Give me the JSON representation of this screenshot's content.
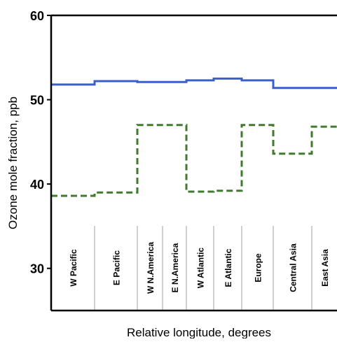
{
  "chart_data": {
    "type": "line",
    "title": "",
    "xlabel": "Relative longitude, degrees",
    "ylabel": "Ozone mole fraction, ppb",
    "ylim": [
      25,
      60
    ],
    "yticks": [
      30,
      40,
      50,
      60
    ],
    "grid": false,
    "step": true,
    "regions": [
      "W Pacific",
      "E Pacific",
      "W N.America",
      "E N.America",
      "W Atlantic",
      "E Atlantic",
      "Europe",
      "Central Asia",
      "East Asia"
    ],
    "series": [
      {
        "color": "#3a5fcd",
        "style": "solid",
        "values": [
          51.8,
          52.2,
          52.1,
          52.1,
          52.3,
          52.5,
          52.3,
          51.4,
          51.4
        ]
      },
      {
        "color": "#3f7a2e",
        "style": "dashed",
        "values": [
          38.6,
          39.0,
          47.0,
          47.0,
          39.1,
          39.2,
          47.0,
          43.6,
          46.8
        ]
      }
    ]
  }
}
